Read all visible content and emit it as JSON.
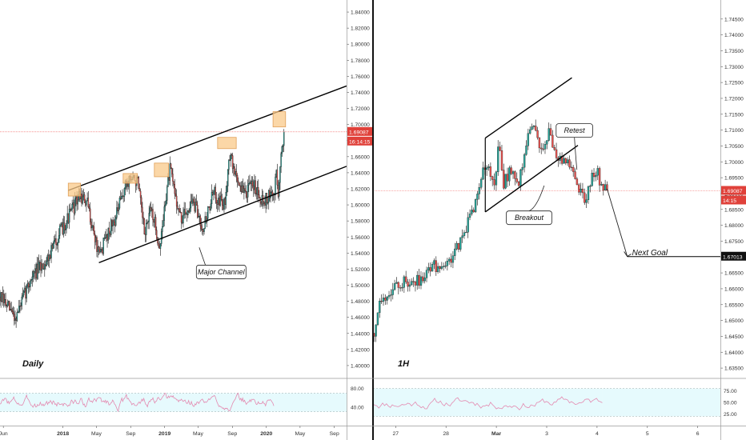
{
  "colors": {
    "up": "#26a69a",
    "down": "#ef5350",
    "wick": "#333333",
    "price_line": "#ef5350",
    "price_tag_bg": "#e0413a",
    "rsi_line": "#e48ab0",
    "rsi_fill": "#e6fafd",
    "box_fill": "#f9c98a",
    "box_stroke": "#e0a05a",
    "axis_text": "#333333"
  },
  "chart_data": [
    {
      "type": "candlestick",
      "panel": "Daily",
      "title": "Daily",
      "y_ticks": [
        1.84,
        1.82,
        1.8,
        1.78,
        1.76,
        1.74,
        1.72,
        1.7,
        1.68,
        1.66,
        1.64,
        1.62,
        1.6,
        1.58,
        1.56,
        1.54,
        1.52,
        1.5,
        1.48,
        1.46,
        1.44,
        1.42,
        1.4
      ],
      "y_tick_labels": [
        "1.84000",
        "1.82000",
        "1.80000",
        "1.78000",
        "1.76000",
        "1.74000",
        "1.72000",
        "1.70000",
        "1.68000",
        "1.66000",
        "1.64000",
        "1.62000",
        "1.60000",
        "1.58000",
        "1.56000",
        "1.54000",
        "1.52000",
        "1.50000",
        "1.48000",
        "1.46000",
        "1.44000",
        "1.42000",
        "1.40000"
      ],
      "ylim": [
        1.385,
        1.855
      ],
      "x_tick_labels": [
        "Jun",
        "2018",
        "May",
        "Sep",
        "2019",
        "May",
        "Sep",
        "2020",
        "May",
        "Sep"
      ],
      "x_tick_dates": [
        "2017-06-01",
        "2018-01-01",
        "2018-05-01",
        "2018-09-01",
        "2019-01-01",
        "2019-05-01",
        "2019-09-01",
        "2020-01-01",
        "2020-05-01",
        "2020-09-01"
      ],
      "xlim": [
        "2017-05-20",
        "2020-10-15"
      ],
      "price_label": "1.69087",
      "countdown_label": "16:14:15",
      "last_price": 1.69087,
      "anchors": [
        [
          "2017-05-20",
          1.485
        ],
        [
          "2017-07-15",
          1.46
        ],
        [
          "2017-09-10",
          1.51
        ],
        [
          "2017-11-01",
          1.53
        ],
        [
          "2017-12-20",
          1.565
        ],
        [
          "2018-02-05",
          1.595
        ],
        [
          "2018-03-01",
          1.612
        ],
        [
          "2018-03-30",
          1.6
        ],
        [
          "2018-04-25",
          1.56
        ],
        [
          "2018-05-10",
          1.535
        ],
        [
          "2018-06-10",
          1.565
        ],
        [
          "2018-07-10",
          1.585
        ],
        [
          "2018-08-10",
          1.62
        ],
        [
          "2018-08-28",
          1.633
        ],
        [
          "2018-09-25",
          1.63
        ],
        [
          "2018-10-20",
          1.565
        ],
        [
          "2018-11-15",
          1.595
        ],
        [
          "2018-12-15",
          1.545
        ],
        [
          "2019-01-05",
          1.61
        ],
        [
          "2019-01-20",
          1.643
        ],
        [
          "2019-03-01",
          1.58
        ],
        [
          "2019-04-10",
          1.605
        ],
        [
          "2019-05-20",
          1.572
        ],
        [
          "2019-06-25",
          1.615
        ],
        [
          "2019-08-05",
          1.598
        ],
        [
          "2019-08-20",
          1.665
        ],
        [
          "2019-09-10",
          1.64
        ],
        [
          "2019-10-10",
          1.615
        ],
        [
          "2019-11-20",
          1.625
        ],
        [
          "2019-12-20",
          1.605
        ],
        [
          "2020-01-10",
          1.61
        ],
        [
          "2020-01-30",
          1.615
        ],
        [
          "2020-02-05",
          1.645
        ],
        [
          "2020-02-12",
          1.615
        ],
        [
          "2020-02-24",
          1.662
        ],
        [
          "2020-03-04",
          1.691
        ]
      ],
      "channel_lines": [
        [
          [
            "2018-05-10",
            1.528
          ],
          [
            "2020-10-15",
            1.648
          ]
        ],
        [
          [
            "2018-01-20",
            1.618
          ],
          [
            "2020-10-15",
            1.748
          ]
        ]
      ],
      "touch_boxes": [
        [
          [
            "2018-01-20",
            1.611
          ],
          [
            "2018-03-05",
            1.627
          ]
        ],
        [
          [
            "2018-08-05",
            1.627
          ],
          [
            "2018-09-25",
            1.639
          ]
        ],
        [
          [
            "2018-11-25",
            1.635
          ],
          [
            "2019-01-15",
            1.652
          ]
        ],
        [
          [
            "2019-07-10",
            1.67
          ],
          [
            "2019-09-15",
            1.684
          ]
        ],
        [
          [
            "2020-01-25",
            1.697
          ],
          [
            "2020-03-10",
            1.716
          ]
        ]
      ],
      "annotation": {
        "text": "Major Channel",
        "at": [
          "2019-07-20",
          1.517
        ],
        "pointer_to": [
          "2019-05-05",
          1.547
        ]
      },
      "rsi": {
        "ticks": [
          80.0,
          40.0
        ],
        "tick_labels": [
          "80.00",
          "40.00"
        ],
        "band": [
          70,
          30
        ]
      }
    },
    {
      "type": "candlestick",
      "panel": "1H",
      "title": "1H",
      "y_ticks": [
        1.75,
        1.745,
        1.74,
        1.735,
        1.73,
        1.725,
        1.72,
        1.715,
        1.71,
        1.705,
        1.7,
        1.695,
        1.69,
        1.685,
        1.68,
        1.675,
        1.67,
        1.665,
        1.66,
        1.655,
        1.65,
        1.645,
        1.64,
        1.635
      ],
      "y_tick_labels": [
        "1.75000",
        "1.74500",
        "1.74000",
        "1.73500",
        "1.73000",
        "1.72500",
        "1.72000",
        "1.71500",
        "1.71000",
        "1.70500",
        "1.70000",
        "1.69500",
        "1.69000",
        "1.68500",
        "1.68000",
        "1.67500",
        "1.67000",
        "1.66500",
        "1.66000",
        "1.65500",
        "1.65000",
        "1.64500",
        "1.64000",
        "1.63500"
      ],
      "ylim": [
        1.632,
        1.751
      ],
      "x_tick_labels": [
        "27",
        "28",
        "Mar",
        "3",
        "4",
        "5",
        "6"
      ],
      "x_tick_values": [
        0,
        1,
        2,
        3,
        4,
        5,
        6
      ],
      "xlim": [
        -0.45,
        6.45
      ],
      "price_label": "1.69087",
      "countdown_label": "14:15",
      "last_price": 1.69087,
      "next_goal_label": "1.67013",
      "next_goal_price": 1.67013,
      "anchors": [
        [
          -0.43,
          1.646
        ],
        [
          -0.3,
          1.657
        ],
        [
          0.15,
          1.662
        ],
        [
          0.5,
          1.663
        ],
        [
          0.6,
          1.666
        ],
        [
          1.1,
          1.669
        ],
        [
          1.25,
          1.674
        ],
        [
          1.5,
          1.683
        ],
        [
          1.7,
          1.695
        ],
        [
          1.82,
          1.7
        ],
        [
          1.95,
          1.693
        ],
        [
          2.05,
          1.705
        ],
        [
          2.15,
          1.693
        ],
        [
          2.25,
          1.697
        ],
        [
          2.45,
          1.694
        ],
        [
          2.6,
          1.706
        ],
        [
          2.75,
          1.711
        ],
        [
          2.9,
          1.704
        ],
        [
          3.05,
          1.709
        ],
        [
          3.25,
          1.7
        ],
        [
          3.4,
          1.701
        ],
        [
          3.5,
          1.697
        ],
        [
          3.6,
          1.693
        ],
        [
          3.75,
          1.688
        ],
        [
          3.9,
          1.695
        ],
        [
          4.0,
          1.697
        ],
        [
          4.1,
          1.692
        ],
        [
          4.2,
          1.691
        ]
      ],
      "channel_lines": [
        [
          [
            1.78,
            1.7075
          ],
          [
            3.5,
            1.7265
          ]
        ],
        [
          [
            1.78,
            1.6842
          ],
          [
            3.62,
            1.7052
          ]
        ]
      ],
      "annotations": [
        {
          "text": "Retest",
          "at": [
            3.55,
            1.71
          ],
          "pointer_to": [
            3.6,
            1.6975
          ]
        },
        {
          "text": "Breakout",
          "at": [
            2.65,
            1.6825
          ],
          "pointer_to": [
            2.95,
            1.6925
          ]
        }
      ],
      "next_goal_arrow": {
        "from": [
          4.2,
          1.6915
        ],
        "to": [
          4.6,
          1.6702
        ],
        "label": "Next Goal"
      },
      "rsi": {
        "ticks": [
          75.0,
          50.0,
          25.0
        ],
        "tick_labels": [
          "75.00",
          "50.00",
          "25.00"
        ],
        "band": [
          80,
          20
        ]
      }
    }
  ]
}
